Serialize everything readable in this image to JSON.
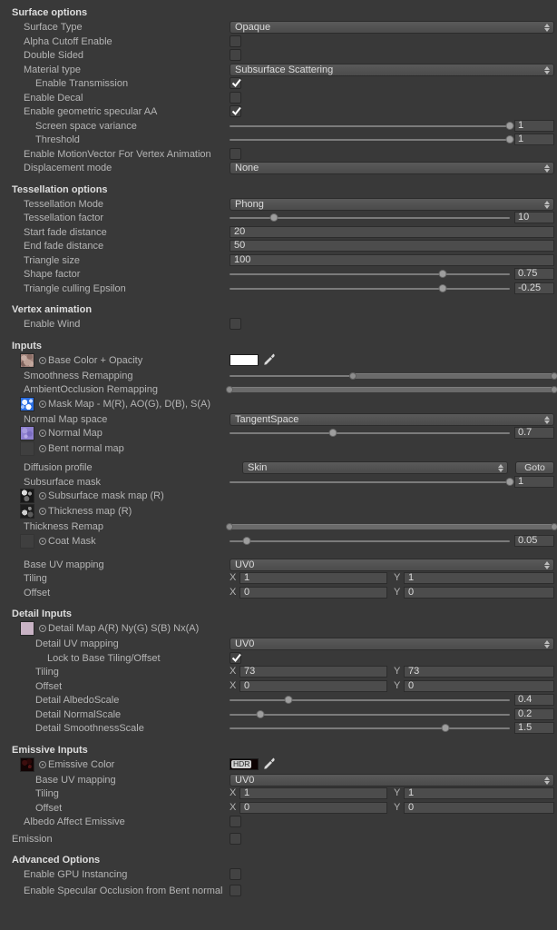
{
  "colors": {
    "background": "#393939",
    "base_color_swatch": "#ffffff",
    "emissive_swatch": "#0d0303",
    "checkmark": "#ffffff"
  },
  "sections": [
    {
      "title": "Surface options",
      "rows": [
        {
          "label": "Surface Type",
          "indent": 1,
          "control": {
            "type": "dropdown",
            "value": "Opaque"
          }
        },
        {
          "label": "Alpha Cutoff Enable",
          "indent": 1,
          "control": {
            "type": "checkbox",
            "checked": false
          }
        },
        {
          "label": "Double Sided",
          "indent": 1,
          "control": {
            "type": "checkbox",
            "checked": false
          }
        },
        {
          "label": "Material type",
          "indent": 1,
          "control": {
            "type": "dropdown",
            "value": "Subsurface Scattering"
          }
        },
        {
          "label": "Enable Transmission",
          "indent": 2,
          "control": {
            "type": "checkbox",
            "checked": true
          }
        },
        {
          "label": "Enable Decal",
          "indent": 1,
          "control": {
            "type": "checkbox",
            "checked": false
          }
        },
        {
          "label": "Enable geometric specular AA",
          "indent": 1,
          "control": {
            "type": "checkbox",
            "checked": true
          }
        },
        {
          "label": "Screen space variance",
          "indent": 2,
          "control": {
            "type": "slider",
            "pos": 100,
            "value": "1"
          }
        },
        {
          "label": "Threshold",
          "indent": 2,
          "control": {
            "type": "slider",
            "pos": 100,
            "value": "1"
          }
        },
        {
          "label": "Enable MotionVector For Vertex Animation",
          "indent": 1,
          "control": {
            "type": "checkbox",
            "checked": false
          }
        },
        {
          "label": "Displacement mode",
          "indent": 1,
          "control": {
            "type": "dropdown",
            "value": "None"
          }
        }
      ]
    },
    {
      "title": "Tessellation options",
      "rows": [
        {
          "label": "Tessellation Mode",
          "indent": 1,
          "control": {
            "type": "dropdown",
            "value": "Phong"
          }
        },
        {
          "label": "Tessellation factor",
          "indent": 1,
          "control": {
            "type": "slider",
            "pos": 16,
            "value": "10"
          }
        },
        {
          "label": "Start fade distance",
          "indent": 1,
          "control": {
            "type": "field",
            "value": "20"
          }
        },
        {
          "label": "End fade distance",
          "indent": 1,
          "control": {
            "type": "field",
            "value": "50"
          }
        },
        {
          "label": "Triangle size",
          "indent": 1,
          "control": {
            "type": "field",
            "value": "100"
          }
        },
        {
          "label": "Shape factor",
          "indent": 1,
          "control": {
            "type": "slider",
            "pos": 76,
            "value": "0.75"
          }
        },
        {
          "label": "Triangle culling Epsilon",
          "indent": 1,
          "control": {
            "type": "slider",
            "pos": 76,
            "value": "-0.25"
          }
        }
      ]
    },
    {
      "title": "Vertex animation",
      "rows": [
        {
          "label": "Enable Wind",
          "indent": 1,
          "control": {
            "type": "checkbox",
            "checked": false
          }
        }
      ]
    },
    {
      "title": "Inputs",
      "rows": [
        {
          "label": "Base Color + Opacity",
          "thumb": "basecolor",
          "control": {
            "type": "color",
            "swatch": "#ffffff"
          }
        },
        {
          "label": "Smoothness Remapping",
          "indent": 1,
          "control": {
            "type": "minmax",
            "start": 38,
            "end": 100
          }
        },
        {
          "label": "AmbientOcclusion Remapping",
          "indent": 1,
          "control": {
            "type": "minmax",
            "start": 0,
            "end": 100
          }
        },
        {
          "label": "Mask Map - M(R), AO(G), D(B), S(A)",
          "thumb": "mask",
          "control": {
            "type": "none"
          }
        },
        {
          "label": "Normal Map space",
          "indent": 1,
          "control": {
            "type": "dropdown",
            "value": "TangentSpace"
          }
        },
        {
          "label": "Normal Map",
          "thumb": "normal",
          "control": {
            "type": "slider",
            "pos": 37,
            "value": "0.7"
          }
        },
        {
          "label": "Bent normal map",
          "thumb": "empty",
          "control": {
            "type": "none"
          }
        },
        {
          "label": "Diffusion profile",
          "indent": 1,
          "gap": 4,
          "control": {
            "type": "dropdown_goto",
            "value": "Skin",
            "button": "Goto"
          }
        },
        {
          "label": "Subsurface mask",
          "indent": 1,
          "control": {
            "type": "slider",
            "pos": 100,
            "value": "1"
          }
        },
        {
          "label": "Subsurface mask map (R)",
          "thumb": "bw1",
          "control": {
            "type": "none"
          }
        },
        {
          "label": "Thickness map (R)",
          "thumb": "bw2",
          "control": {
            "type": "none"
          }
        },
        {
          "label": "Thickness Remap",
          "indent": 1,
          "control": {
            "type": "minmax",
            "start": 0,
            "end": 100
          }
        },
        {
          "label": "Coat Mask",
          "thumb": "empty",
          "control": {
            "type": "slider",
            "pos": 6,
            "value": "0.05"
          }
        },
        {
          "label": "Base UV mapping",
          "indent": 1,
          "gap": 9,
          "control": {
            "type": "dropdown",
            "value": "UV0"
          }
        },
        {
          "label": "Tiling",
          "indent": 1,
          "control": {
            "type": "xy",
            "x_label": "X",
            "x": "1",
            "y_label": "Y",
            "y": "1"
          }
        },
        {
          "label": "Offset",
          "indent": 1,
          "control": {
            "type": "xy",
            "x_label": "X",
            "x": "0",
            "y_label": "Y",
            "y": "0"
          }
        }
      ]
    },
    {
      "title": "Detail Inputs",
      "rows": [
        {
          "label": "Detail Map A(R) Ny(G) S(B) Nx(A)",
          "thumb": "detail",
          "control": {
            "type": "none"
          }
        },
        {
          "label": "Detail UV mapping",
          "indent": 2,
          "control": {
            "type": "dropdown",
            "value": "UV0"
          }
        },
        {
          "label": "Lock to Base Tiling/Offset",
          "indent": 3,
          "control": {
            "type": "checkbox",
            "checked": true
          }
        },
        {
          "label": "Tiling",
          "indent": 2,
          "control": {
            "type": "xy",
            "x_label": "X",
            "x": "73",
            "y_label": "Y",
            "y": "73"
          }
        },
        {
          "label": "Offset",
          "indent": 2,
          "control": {
            "type": "xy",
            "x_label": "X",
            "x": "0",
            "y_label": "Y",
            "y": "0"
          }
        },
        {
          "label": "Detail AlbedoScale",
          "indent": 2,
          "control": {
            "type": "slider",
            "pos": 21,
            "value": "0.4"
          }
        },
        {
          "label": "Detail NormalScale",
          "indent": 2,
          "control": {
            "type": "slider",
            "pos": 11,
            "value": "0.2"
          }
        },
        {
          "label": "Detail SmoothnessScale",
          "indent": 2,
          "control": {
            "type": "slider",
            "pos": 77,
            "value": "1.5"
          }
        }
      ]
    },
    {
      "title": "Emissive Inputs",
      "rows": [
        {
          "label": "Emissive Color",
          "thumb": "emissive",
          "control": {
            "type": "hdr",
            "swatch": "#0d0303",
            "badge": "HDR"
          }
        },
        {
          "label": "Base UV mapping",
          "indent": 2,
          "control": {
            "type": "dropdown",
            "value": "UV0"
          }
        },
        {
          "label": "Tiling",
          "indent": 2,
          "control": {
            "type": "xy",
            "x_label": "X",
            "x": "1",
            "y_label": "Y",
            "y": "1"
          }
        },
        {
          "label": "Offset",
          "indent": 2,
          "control": {
            "type": "xy",
            "x_label": "X",
            "x": "0",
            "y_label": "Y",
            "y": "0"
          }
        },
        {
          "label": "Albedo Affect Emissive",
          "indent": 1,
          "control": {
            "type": "checkbox",
            "checked": false
          }
        },
        {
          "label": "Emission",
          "indent": 0,
          "gap": 3,
          "control": {
            "type": "checkbox",
            "checked": false
          }
        }
      ]
    },
    {
      "title": "Advanced Options",
      "rows": [
        {
          "label": "Enable GPU Instancing",
          "indent": 1,
          "control": {
            "type": "checkbox",
            "checked": false
          }
        },
        {
          "label": "Enable Specular Occlusion from Bent normal",
          "indent": 1,
          "gap": 2,
          "control": {
            "type": "checkbox",
            "checked": false
          }
        }
      ]
    }
  ]
}
